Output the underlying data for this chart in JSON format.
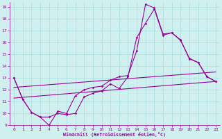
{
  "xlabel": "Windchill (Refroidissement éolien,°C)",
  "bg_color": "#cff0ee",
  "line_color": "#990099",
  "grid_color": "#aadddd",
  "xlim": [
    -0.5,
    23.5
  ],
  "ylim": [
    9,
    19.4
  ],
  "xticks": [
    0,
    1,
    2,
    3,
    4,
    5,
    6,
    7,
    8,
    9,
    10,
    11,
    12,
    13,
    14,
    15,
    16,
    17,
    18,
    19,
    20,
    21,
    22,
    23
  ],
  "yticks": [
    9,
    10,
    11,
    12,
    13,
    14,
    15,
    16,
    17,
    18,
    19
  ],
  "line1": {
    "x": [
      0,
      1,
      2,
      3,
      4,
      5,
      6,
      7,
      8,
      9,
      10,
      11,
      12,
      13,
      14,
      15,
      16,
      17,
      18,
      19,
      20,
      21,
      22,
      23
    ],
    "y": [
      13,
      11.2,
      10.1,
      9.7,
      9,
      10.2,
      10.0,
      11.5,
      12.0,
      12.2,
      12.3,
      12.8,
      13.1,
      13.2,
      15.3,
      19.2,
      18.9,
      16.7,
      16.8,
      16.2,
      14.6,
      14.3,
      13.1,
      12.7
    ]
  },
  "line2": {
    "x": [
      0,
      1,
      2,
      3,
      4,
      5,
      6,
      7,
      8,
      9,
      10,
      11,
      12,
      13,
      14,
      15,
      16,
      17,
      18,
      19,
      20,
      21,
      22,
      23
    ],
    "y": [
      13,
      11.2,
      10.1,
      9.7,
      9.7,
      10.0,
      9.9,
      10.0,
      11.4,
      11.7,
      11.9,
      12.5,
      12.1,
      13.1,
      16.4,
      17.6,
      18.8,
      16.6,
      16.8,
      16.15,
      14.65,
      14.3,
      13.1,
      12.7
    ]
  },
  "line3_x": [
    0,
    23
  ],
  "line3_y": [
    11.3,
    12.7
  ],
  "line4_x": [
    0,
    23
  ],
  "line4_y": [
    12.2,
    13.5
  ]
}
